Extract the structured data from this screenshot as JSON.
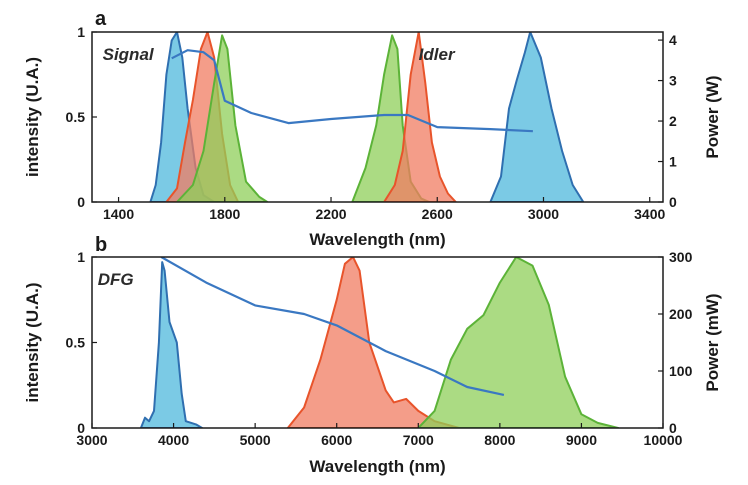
{
  "chart_data": [
    {
      "panel": "a",
      "type": "area",
      "xlabel": "Wavelength (nm)",
      "ylabel": "intensity (U.A.)",
      "y2label": "Power (W)",
      "xlim": [
        1300,
        3450
      ],
      "ylim": [
        0,
        1
      ],
      "y2lim": [
        0,
        4.2
      ],
      "xticks": [
        1400,
        1800,
        2200,
        2600,
        3000,
        3400
      ],
      "yticks": [
        {
          "v": 0,
          "t": "0"
        },
        {
          "v": 0.5,
          "t": "0.5"
        },
        {
          "v": 1,
          "t": "1"
        }
      ],
      "y2ticks": [
        0,
        1,
        2,
        3,
        4
      ],
      "annotations": [
        {
          "text": "Signal",
          "x": 1340,
          "y": 0.87
        },
        {
          "text": "Idler",
          "x": 2530,
          "y": 0.87
        }
      ],
      "colors": {
        "blue": "#4fb8dc",
        "red": "#f07c61",
        "green": "#8fcf5a",
        "blue_edge": "#2f6fb0",
        "red_edge": "#e8542b",
        "green_edge": "#5cb338",
        "power_line": "#3a78c2"
      },
      "series": [
        {
          "color": "blue",
          "points": [
            [
              1520,
              0
            ],
            [
              1540,
              0.1
            ],
            [
              1560,
              0.35
            ],
            [
              1580,
              0.75
            ],
            [
              1600,
              0.95
            ],
            [
              1620,
              1.0
            ],
            [
              1640,
              0.85
            ],
            [
              1660,
              0.55
            ],
            [
              1690,
              0.2
            ],
            [
              1720,
              0.04
            ],
            [
              1760,
              0
            ]
          ]
        },
        {
          "color": "red",
          "points": [
            [
              1580,
              0
            ],
            [
              1620,
              0.08
            ],
            [
              1650,
              0.35
            ],
            [
              1680,
              0.6
            ],
            [
              1710,
              0.9
            ],
            [
              1735,
              1.0
            ],
            [
              1760,
              0.85
            ],
            [
              1790,
              0.4
            ],
            [
              1820,
              0.1
            ],
            [
              1850,
              0
            ]
          ]
        },
        {
          "color": "green",
          "points": [
            [
              1620,
              0
            ],
            [
              1680,
              0.1
            ],
            [
              1720,
              0.3
            ],
            [
              1760,
              0.7
            ],
            [
              1790,
              0.98
            ],
            [
              1810,
              0.9
            ],
            [
              1840,
              0.45
            ],
            [
              1880,
              0.12
            ],
            [
              1930,
              0.03
            ],
            [
              1960,
              0
            ]
          ]
        },
        {
          "color": "green",
          "points": [
            [
              2280,
              0
            ],
            [
              2330,
              0.2
            ],
            [
              2370,
              0.45
            ],
            [
              2400,
              0.75
            ],
            [
              2430,
              0.98
            ],
            [
              2450,
              0.9
            ],
            [
              2470,
              0.45
            ],
            [
              2500,
              0.12
            ],
            [
              2540,
              0.02
            ],
            [
              2570,
              0
            ]
          ]
        },
        {
          "color": "red",
          "points": [
            [
              2400,
              0
            ],
            [
              2440,
              0.1
            ],
            [
              2470,
              0.3
            ],
            [
              2500,
              0.75
            ],
            [
              2530,
              1.0
            ],
            [
              2555,
              0.7
            ],
            [
              2580,
              0.35
            ],
            [
              2610,
              0.15
            ],
            [
              2640,
              0.05
            ],
            [
              2670,
              0
            ]
          ]
        },
        {
          "color": "blue",
          "points": [
            [
              2800,
              0
            ],
            [
              2840,
              0.15
            ],
            [
              2870,
              0.55
            ],
            [
              2900,
              0.72
            ],
            [
              2930,
              0.88
            ],
            [
              2950,
              1.0
            ],
            [
              2990,
              0.85
            ],
            [
              3030,
              0.55
            ],
            [
              3070,
              0.3
            ],
            [
              3110,
              0.1
            ],
            [
              3150,
              0
            ]
          ]
        }
      ],
      "power_curve": [
        [
          1600,
          3.55
        ],
        [
          1660,
          3.75
        ],
        [
          1720,
          3.7
        ],
        [
          1760,
          3.5
        ],
        [
          1800,
          2.5
        ],
        [
          1900,
          2.2
        ],
        [
          2040,
          1.95
        ],
        [
          2200,
          2.05
        ],
        [
          2400,
          2.15
        ],
        [
          2490,
          2.15
        ],
        [
          2600,
          1.85
        ],
        [
          2800,
          1.8
        ],
        [
          2960,
          1.75
        ]
      ]
    },
    {
      "panel": "b",
      "type": "area",
      "xlabel": "Wavelength (nm)",
      "ylabel": "intensity (U.A.)",
      "y2label": "Power (mW)",
      "xlim": [
        3000,
        10000
      ],
      "ylim": [
        0,
        1
      ],
      "y2lim": [
        0,
        300
      ],
      "xticks": [
        3000,
        4000,
        5000,
        6000,
        7000,
        8000,
        9000,
        10000
      ],
      "yticks": [
        {
          "v": 0,
          "t": "0"
        },
        {
          "v": 0.5,
          "t": "0.5"
        },
        {
          "v": 1,
          "t": "1"
        }
      ],
      "y2ticks": [
        0,
        100,
        200,
        300
      ],
      "annotations": [
        {
          "text": "DFG",
          "x": 3070,
          "y": 0.87
        }
      ],
      "colors": {
        "blue": "#4fb8dc",
        "red": "#f07c61",
        "green": "#8fcf5a",
        "blue_edge": "#2f6fb0",
        "red_edge": "#e8542b",
        "green_edge": "#5cb338",
        "power_line": "#3a78c2"
      },
      "series": [
        {
          "color": "blue",
          "points": [
            [
              3600,
              0
            ],
            [
              3650,
              0.06
            ],
            [
              3700,
              0.04
            ],
            [
              3760,
              0.1
            ],
            [
              3820,
              0.5
            ],
            [
              3860,
              0.97
            ],
            [
              3890,
              0.92
            ],
            [
              3950,
              0.62
            ],
            [
              4040,
              0.5
            ],
            [
              4100,
              0.2
            ],
            [
              4150,
              0.04
            ],
            [
              4280,
              0.02
            ],
            [
              4350,
              0
            ]
          ]
        },
        {
          "color": "red",
          "points": [
            [
              5400,
              0
            ],
            [
              5600,
              0.12
            ],
            [
              5800,
              0.4
            ],
            [
              6000,
              0.75
            ],
            [
              6100,
              0.96
            ],
            [
              6200,
              1.0
            ],
            [
              6280,
              0.92
            ],
            [
              6400,
              0.5
            ],
            [
              6600,
              0.22
            ],
            [
              6700,
              0.15
            ],
            [
              6850,
              0.17
            ],
            [
              7000,
              0.1
            ],
            [
              7200,
              0.04
            ],
            [
              7500,
              0
            ]
          ]
        },
        {
          "color": "green",
          "points": [
            [
              7000,
              0
            ],
            [
              7200,
              0.1
            ],
            [
              7400,
              0.4
            ],
            [
              7600,
              0.58
            ],
            [
              7800,
              0.66
            ],
            [
              8000,
              0.85
            ],
            [
              8200,
              1.0
            ],
            [
              8400,
              0.95
            ],
            [
              8600,
              0.72
            ],
            [
              8800,
              0.3
            ],
            [
              9000,
              0.08
            ],
            [
              9200,
              0.03
            ],
            [
              9450,
              0
            ]
          ]
        }
      ],
      "power_curve": [
        [
          3850,
          300
        ],
        [
          4400,
          255
        ],
        [
          5000,
          215
        ],
        [
          5600,
          200
        ],
        [
          6000,
          180
        ],
        [
          6600,
          135
        ],
        [
          7200,
          100
        ],
        [
          7600,
          72
        ],
        [
          8050,
          58
        ]
      ]
    }
  ]
}
